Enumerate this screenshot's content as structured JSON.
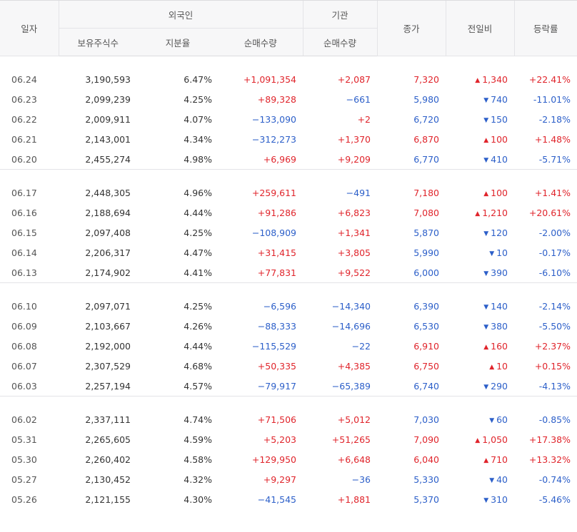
{
  "header": {
    "date": "일자",
    "foreign": "외국인",
    "institution": "기관",
    "close": "종가",
    "change": "전일비",
    "rate": "등락률",
    "holdings": "보유주식수",
    "ratio": "지분율",
    "foreign_net": "순매수량",
    "inst_net": "순매수량"
  },
  "colors": {
    "up": "#e0242b",
    "down": "#2c5fc9"
  },
  "icons": {
    "up": "triangle-up-icon",
    "down": "triangle-down-icon"
  },
  "groups": [
    {
      "rows": [
        {
          "date": "06.24",
          "holdings": "3,190,593",
          "ratio": "6.47%",
          "foreign_net": "+1,091,354",
          "inst_net": "+2,087",
          "close": "7,320",
          "dir": "up",
          "change": "1,340",
          "rate": "+22.41%"
        },
        {
          "date": "06.23",
          "holdings": "2,099,239",
          "ratio": "4.25%",
          "foreign_net": "+89,328",
          "inst_net": "−661",
          "close": "5,980",
          "dir": "down",
          "change": "740",
          "rate": "-11.01%"
        },
        {
          "date": "06.22",
          "holdings": "2,009,911",
          "ratio": "4.07%",
          "foreign_net": "−133,090",
          "inst_net": "+2",
          "close": "6,720",
          "dir": "down",
          "change": "150",
          "rate": "-2.18%"
        },
        {
          "date": "06.21",
          "holdings": "2,143,001",
          "ratio": "4.34%",
          "foreign_net": "−312,273",
          "inst_net": "+1,370",
          "close": "6,870",
          "dir": "up",
          "change": "100",
          "rate": "+1.48%"
        },
        {
          "date": "06.20",
          "holdings": "2,455,274",
          "ratio": "4.98%",
          "foreign_net": "+6,969",
          "inst_net": "+9,209",
          "close": "6,770",
          "dir": "down",
          "change": "410",
          "rate": "-5.71%"
        }
      ]
    },
    {
      "rows": [
        {
          "date": "06.17",
          "holdings": "2,448,305",
          "ratio": "4.96%",
          "foreign_net": "+259,611",
          "inst_net": "−491",
          "close": "7,180",
          "dir": "up",
          "change": "100",
          "rate": "+1.41%"
        },
        {
          "date": "06.16",
          "holdings": "2,188,694",
          "ratio": "4.44%",
          "foreign_net": "+91,286",
          "inst_net": "+6,823",
          "close": "7,080",
          "dir": "up",
          "change": "1,210",
          "rate": "+20.61%"
        },
        {
          "date": "06.15",
          "holdings": "2,097,408",
          "ratio": "4.25%",
          "foreign_net": "−108,909",
          "inst_net": "+1,341",
          "close": "5,870",
          "dir": "down",
          "change": "120",
          "rate": "-2.00%"
        },
        {
          "date": "06.14",
          "holdings": "2,206,317",
          "ratio": "4.47%",
          "foreign_net": "+31,415",
          "inst_net": "+3,805",
          "close": "5,990",
          "dir": "down",
          "change": "10",
          "rate": "-0.17%"
        },
        {
          "date": "06.13",
          "holdings": "2,174,902",
          "ratio": "4.41%",
          "foreign_net": "+77,831",
          "inst_net": "+9,522",
          "close": "6,000",
          "dir": "down",
          "change": "390",
          "rate": "-6.10%"
        }
      ]
    },
    {
      "rows": [
        {
          "date": "06.10",
          "holdings": "2,097,071",
          "ratio": "4.25%",
          "foreign_net": "−6,596",
          "inst_net": "−14,340",
          "close": "6,390",
          "dir": "down",
          "change": "140",
          "rate": "-2.14%"
        },
        {
          "date": "06.09",
          "holdings": "2,103,667",
          "ratio": "4.26%",
          "foreign_net": "−88,333",
          "inst_net": "−14,696",
          "close": "6,530",
          "dir": "down",
          "change": "380",
          "rate": "-5.50%"
        },
        {
          "date": "06.08",
          "holdings": "2,192,000",
          "ratio": "4.44%",
          "foreign_net": "−115,529",
          "inst_net": "−22",
          "close": "6,910",
          "dir": "up",
          "change": "160",
          "rate": "+2.37%"
        },
        {
          "date": "06.07",
          "holdings": "2,307,529",
          "ratio": "4.68%",
          "foreign_net": "+50,335",
          "inst_net": "+4,385",
          "close": "6,750",
          "dir": "up",
          "change": "10",
          "rate": "+0.15%"
        },
        {
          "date": "06.03",
          "holdings": "2,257,194",
          "ratio": "4.57%",
          "foreign_net": "−79,917",
          "inst_net": "−65,389",
          "close": "6,740",
          "dir": "down",
          "change": "290",
          "rate": "-4.13%"
        }
      ]
    },
    {
      "rows": [
        {
          "date": "06.02",
          "holdings": "2,337,111",
          "ratio": "4.74%",
          "foreign_net": "+71,506",
          "inst_net": "+5,012",
          "close": "7,030",
          "dir": "down",
          "change": "60",
          "rate": "-0.85%"
        },
        {
          "date": "05.31",
          "holdings": "2,265,605",
          "ratio": "4.59%",
          "foreign_net": "+5,203",
          "inst_net": "+51,265",
          "close": "7,090",
          "dir": "up",
          "change": "1,050",
          "rate": "+17.38%"
        },
        {
          "date": "05.30",
          "holdings": "2,260,402",
          "ratio": "4.58%",
          "foreign_net": "+129,950",
          "inst_net": "+6,648",
          "close": "6,040",
          "dir": "up",
          "change": "710",
          "rate": "+13.32%"
        },
        {
          "date": "05.27",
          "holdings": "2,130,452",
          "ratio": "4.32%",
          "foreign_net": "+9,297",
          "inst_net": "−36",
          "close": "5,330",
          "dir": "down",
          "change": "40",
          "rate": "-0.74%"
        },
        {
          "date": "05.26",
          "holdings": "2,121,155",
          "ratio": "4.30%",
          "foreign_net": "−41,545",
          "inst_net": "+1,881",
          "close": "5,370",
          "dir": "down",
          "change": "310",
          "rate": "-5.46%"
        }
      ]
    }
  ]
}
